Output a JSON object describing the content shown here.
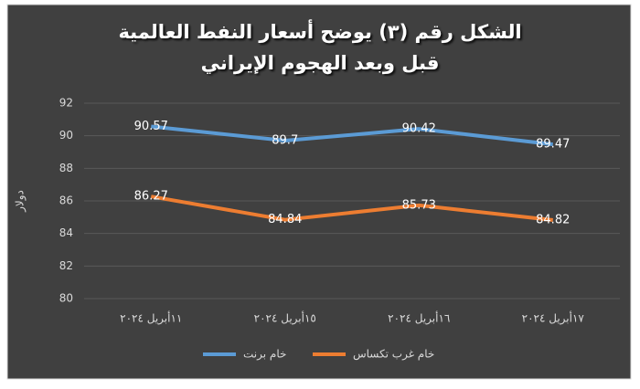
{
  "chart_data": {
    "type": "line",
    "title": "الشكل رقم (٣) يوضح أسعار النفط العالمية",
    "subtitle": "قبل وبعد الهجوم الإيراني",
    "y_label": "دولار",
    "categories": [
      "١١أبريل ٢٠٢٤",
      "١٥أبريل ٢٠٢٤",
      "١٦أبريل ٢٠٢٤",
      "١٧أبريل ٢٠٢٤"
    ],
    "series": [
      {
        "name": "خام برنت",
        "color": "#5b9bd5",
        "values": [
          90.57,
          89.7,
          90.42,
          89.47
        ]
      },
      {
        "name": "خام غرب تكساس",
        "color": "#ed7d31",
        "values": [
          86.27,
          84.84,
          85.73,
          84.82
        ]
      }
    ],
    "ylim": [
      80,
      92
    ],
    "yticks": [
      80,
      82,
      84,
      86,
      88,
      90,
      92
    ],
    "grid": true
  }
}
